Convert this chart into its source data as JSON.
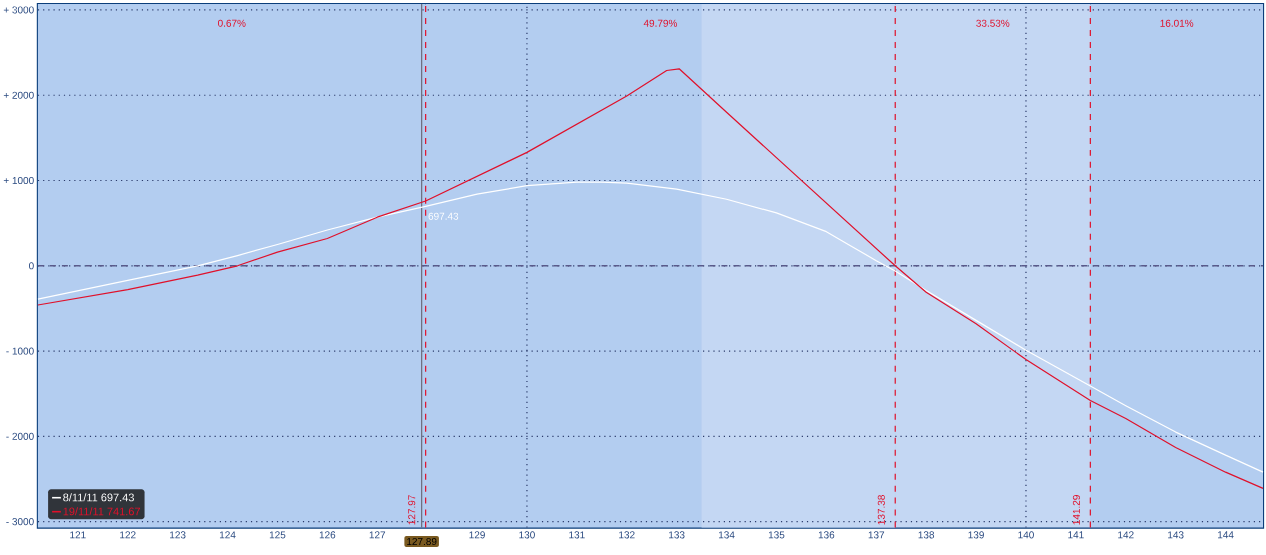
{
  "chart_data": {
    "type": "line",
    "series": [
      {
        "name": "8/11/11   697.43",
        "color": "#ffffff",
        "x": [
          120.2,
          122,
          123.4,
          124.2,
          125,
          126,
          127,
          127.97,
          129,
          130,
          131,
          131.5,
          132,
          133,
          134,
          135,
          136,
          136.5,
          137,
          137.38,
          138,
          139,
          140,
          141.29,
          142,
          143,
          144,
          144.75
        ],
        "values": [
          -390,
          -170,
          0,
          120,
          250,
          420,
          570,
          697.43,
          840,
          940,
          980,
          980,
          970,
          900,
          780,
          620,
          400,
          230,
          60,
          -60,
          -290,
          -640,
          -990,
          -1410,
          -1640,
          -1950,
          -2220,
          -2420
        ]
      },
      {
        "name": "19/11/11  741.67",
        "color": "#e0102a",
        "x": [
          120.2,
          122,
          123.4,
          124.2,
          125,
          126,
          127,
          127.97,
          130,
          132,
          132.8,
          133.05,
          134,
          137.38,
          138,
          139,
          140,
          141.29,
          142,
          143,
          144,
          144.75
        ],
        "values": [
          -460,
          -280,
          -110,
          0,
          160,
          320,
          570,
          760,
          1330,
          1990,
          2290,
          2310,
          1800,
          0,
          -310,
          -680,
          -1100,
          -1580,
          -1790,
          -2130,
          -2420,
          -2610
        ]
      }
    ],
    "xlim": [
      120.2,
      144.75
    ],
    "ylim": [
      -3070,
      3070
    ],
    "xticks": [
      121,
      122,
      123,
      124,
      125,
      126,
      127,
      129,
      130,
      131,
      132,
      133,
      134,
      135,
      136,
      137,
      138,
      139,
      140,
      141,
      142,
      143,
      144
    ],
    "yticks": [
      {
        "value": -3000,
        "label": "- 3000"
      },
      {
        "value": -2000,
        "label": "- 2000"
      },
      {
        "value": -1000,
        "label": "- 1000"
      },
      0,
      {
        "value": 1000,
        "label": "+ 1000"
      },
      {
        "value": 2000,
        "label": "+ 2000"
      },
      {
        "value": 3000,
        "label": "+ 3000"
      }
    ],
    "grid": "y",
    "legend": "bottom left",
    "bands": [
      {
        "axis": "x",
        "from": 120.2,
        "to": 127.97,
        "label": "0.67%",
        "color": "#b3cdf0"
      },
      {
        "axis": "x",
        "from": 127.97,
        "to": 137.38,
        "label": "49.79%",
        "color": "#b3cdf0"
      },
      {
        "axis": "x",
        "from": 137.38,
        "to": 141.29,
        "label": "33.53%",
        "color": "#c4d7f3"
      },
      {
        "axis": "x",
        "from": 141.29,
        "to": 144.75,
        "label": "16.01%",
        "color": "#b3cdf0"
      },
      {
        "axis": "x",
        "from": 133.5,
        "to": 137.38,
        "color": "#c4d7f3"
      }
    ],
    "ref_lines": [
      {
        "axis": "x",
        "value": 130,
        "color": "#2a3a6a",
        "line_style": "dotted"
      },
      {
        "axis": "x",
        "value": 140,
        "color": "#2a3a6a",
        "line_style": "dotted"
      },
      {
        "axis": "y",
        "value": 0,
        "color": "#5a5a8a",
        "line_style": "dashed"
      },
      {
        "axis": "x",
        "value": 127.89,
        "color": "#6b6b7b",
        "line_style": "solid",
        "label": "127.89"
      },
      {
        "axis": "x",
        "value": 127.97,
        "color": "#e0102a",
        "line_style": "dashed",
        "label": "127.97"
      },
      {
        "axis": "x",
        "value": 137.38,
        "color": "#e0102a",
        "line_style": "dashed",
        "label": "137.38"
      },
      {
        "axis": "x",
        "value": 141.29,
        "color": "#e0102a",
        "line_style": "dashed",
        "label": "141.29"
      }
    ],
    "annotations": [
      {
        "text": "697.43",
        "x": 127.97,
        "y": 697.43
      }
    ]
  }
}
